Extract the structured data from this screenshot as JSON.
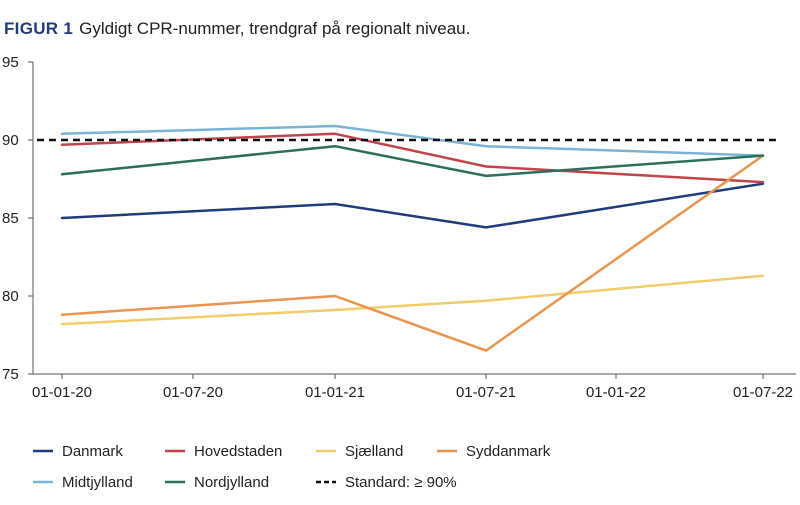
{
  "figure_label": "FIGUR 1",
  "title": "Gyldigt CPR-nummer, trendgraf på regionalt niveau.",
  "chart_data": {
    "type": "line",
    "title": "Gyldigt CPR-nummer, trendgraf på regionalt niveau.",
    "xlabel": "",
    "ylabel": "",
    "ylim": [
      75,
      95
    ],
    "y_ticks": [
      75,
      80,
      85,
      90,
      95
    ],
    "x_ticks": [
      "01-01-20",
      "01-07-20",
      "01-01-21",
      "01-07-21",
      "01-01-22",
      "01-07-22"
    ],
    "x": [
      "01-01-20",
      "01-01-21",
      "01-07-21",
      "01-07-22"
    ],
    "grid": false,
    "legend_position": "bottom",
    "series": [
      {
        "name": "Danmark",
        "color": "#1f3d7a",
        "dash": false,
        "values": [
          85.0,
          85.9,
          84.4,
          87.2
        ]
      },
      {
        "name": "Hovedstaden",
        "color": "#c0444a",
        "dash": false,
        "values": [
          89.7,
          90.4,
          88.3,
          87.3
        ]
      },
      {
        "name": "Sjælland",
        "color": "#f0cd68",
        "dash": false,
        "values": [
          78.2,
          79.1,
          79.7,
          81.3
        ]
      },
      {
        "name": "Syddanmark",
        "color": "#e8954f",
        "dash": false,
        "values": [
          78.8,
          80.0,
          76.5,
          89.0
        ]
      },
      {
        "name": "Midtjylland",
        "color": "#7ab3d6",
        "dash": false,
        "values": [
          90.4,
          90.9,
          89.6,
          89.0
        ]
      },
      {
        "name": "Nordjylland",
        "color": "#2d6e5e",
        "dash": false,
        "values": [
          87.8,
          89.6,
          87.7,
          89.0
        ]
      },
      {
        "name": "Standard: ≥ 90%",
        "color": "#111111",
        "dash": true,
        "values": [
          90,
          90,
          90,
          90
        ]
      }
    ]
  }
}
